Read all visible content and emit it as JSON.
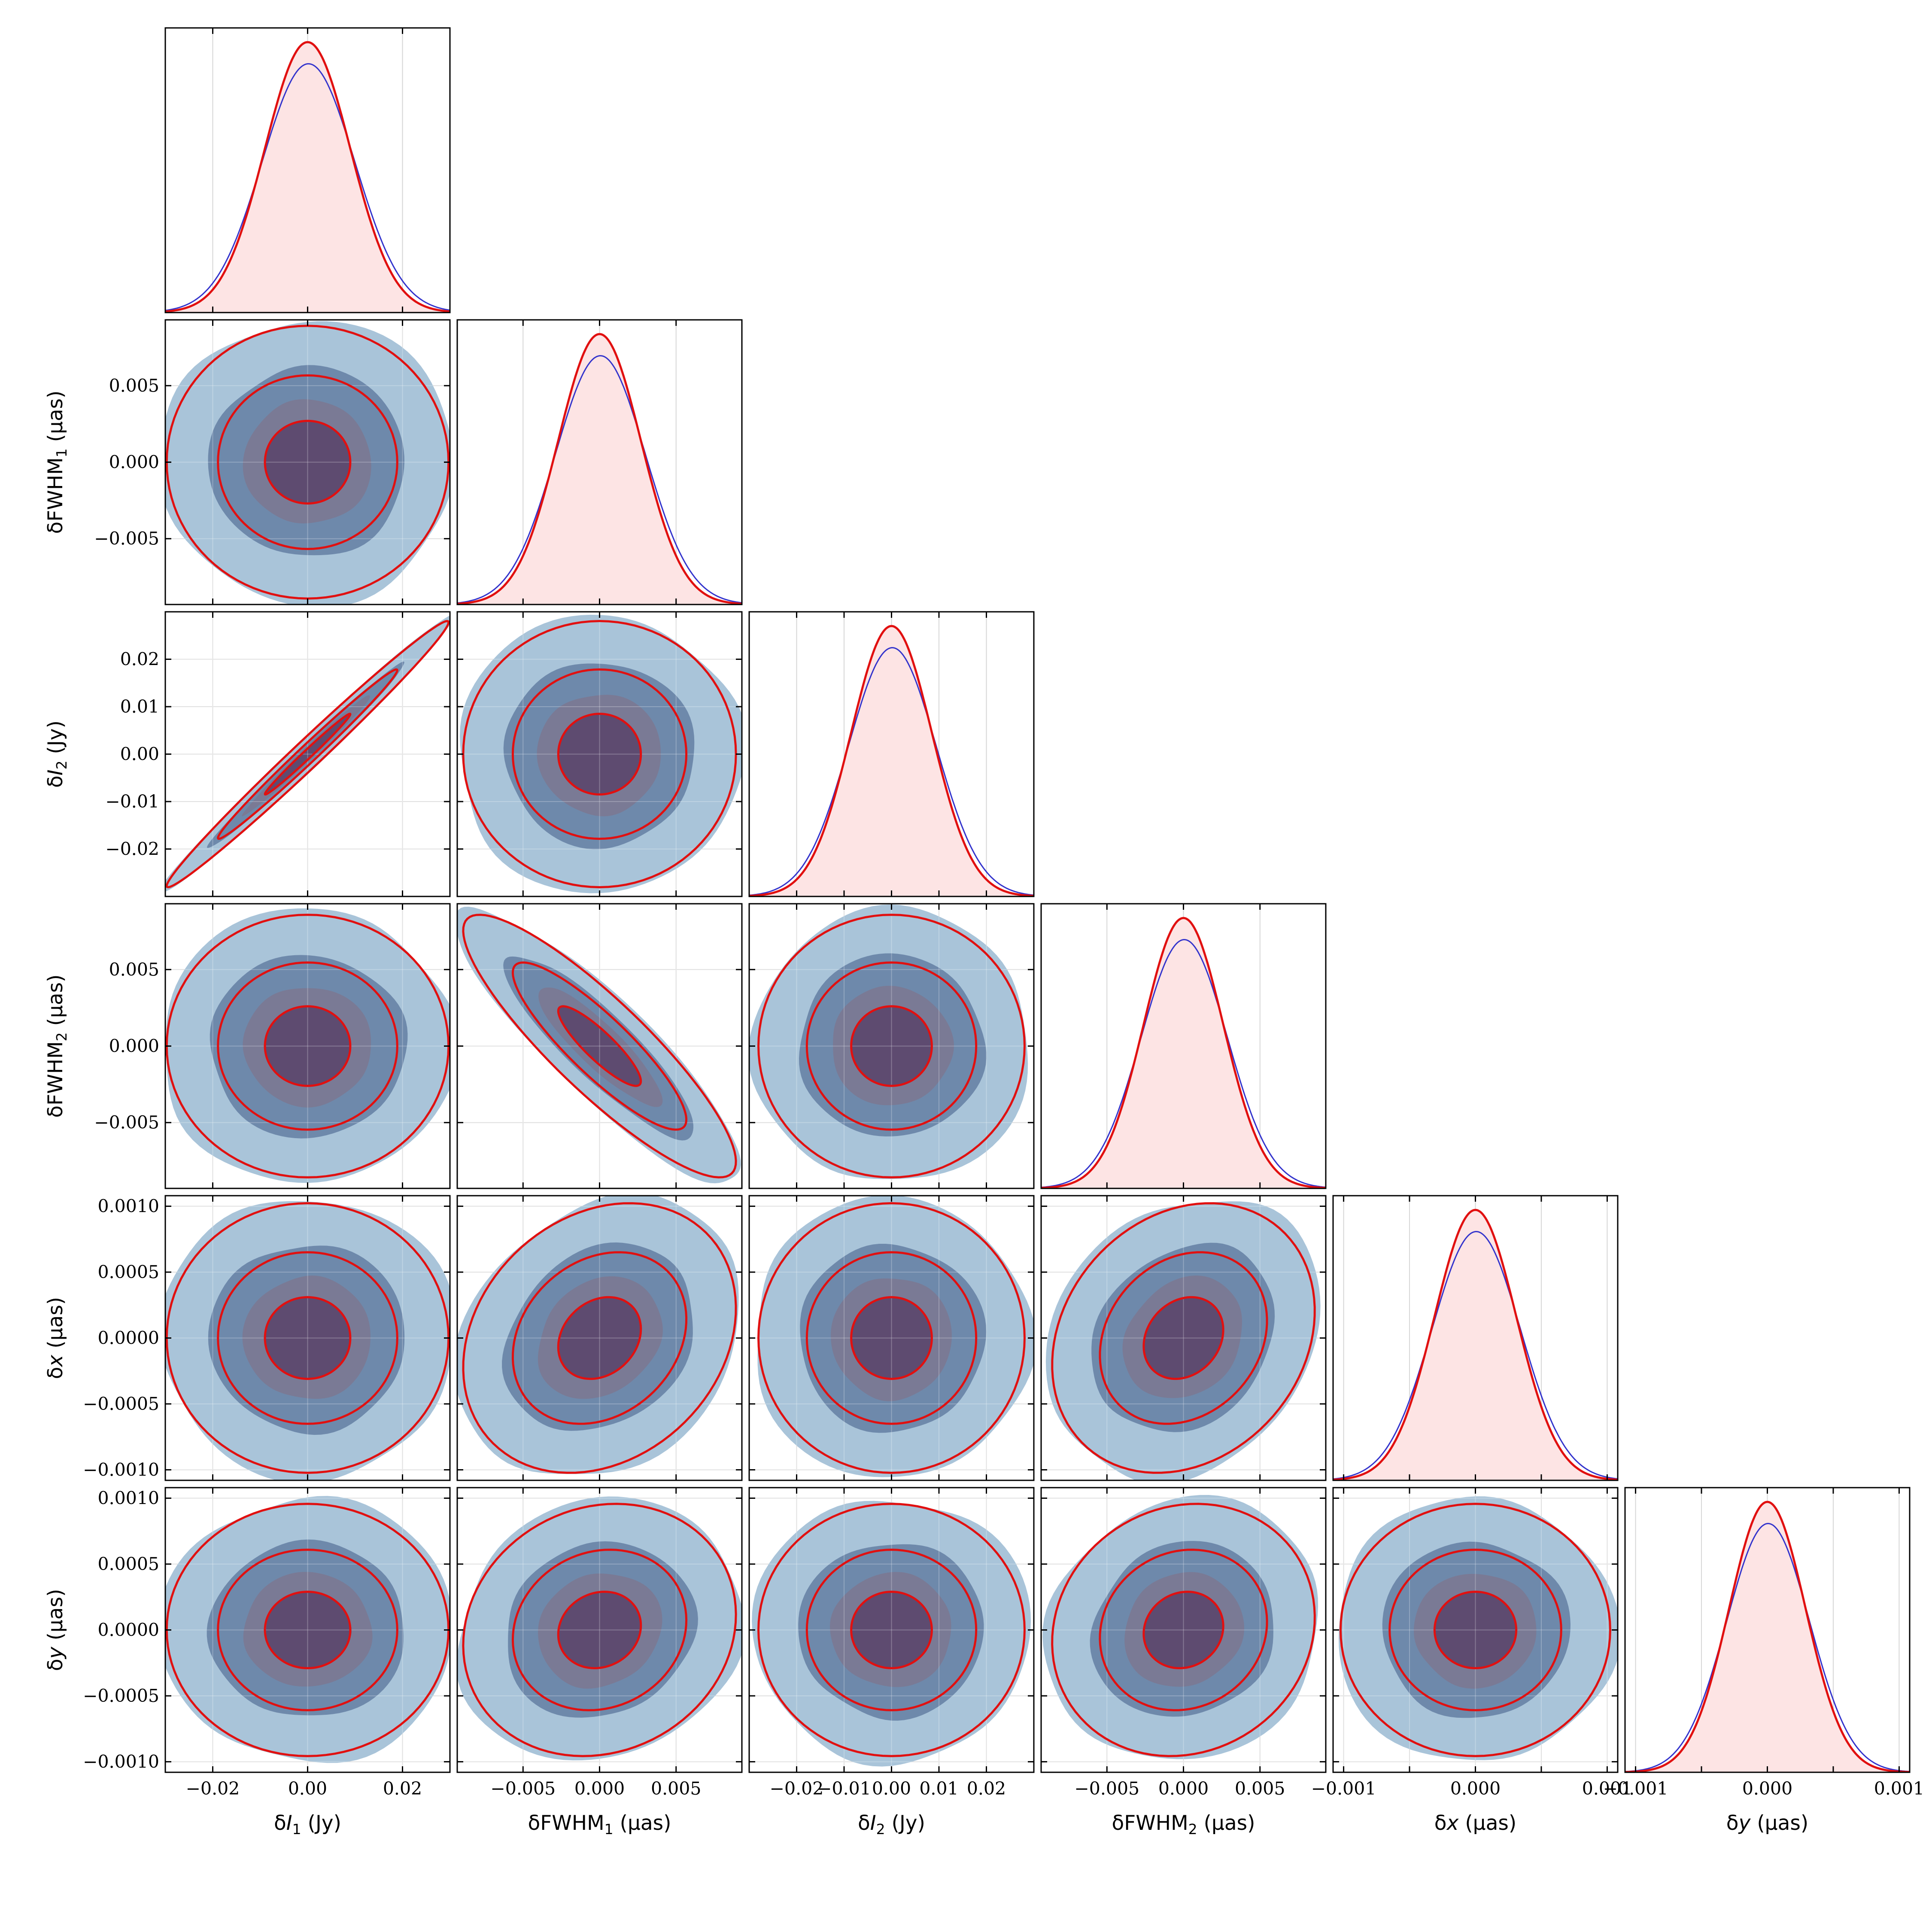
{
  "chart_data": {
    "type": "corner",
    "parameters": [
      {
        "key": "dI1",
        "base": "δI",
        "sub": "1",
        "italic": true,
        "unit": "(Jy)",
        "range": [
          -0.03,
          0.03
        ],
        "sigma": 0.009,
        "ticks": [
          -0.02,
          0.0,
          0.02
        ],
        "tick_labels": [
          "−0.02",
          "0.00",
          "0.02"
        ]
      },
      {
        "key": "dFWHM1",
        "base": "δFWHM",
        "sub": "1",
        "italic": false,
        "unit": "(μas)",
        "range": [
          -0.0093,
          0.0093
        ],
        "sigma": 0.0027,
        "ticks": [
          -0.005,
          0.0,
          0.005
        ],
        "tick_labels": [
          "−0.005",
          "0.000",
          "0.005"
        ]
      },
      {
        "key": "dI2",
        "base": "δI",
        "sub": "2",
        "italic": true,
        "unit": "(Jy)",
        "range": [
          -0.03,
          0.03
        ],
        "sigma": 0.0085,
        "ticks": [
          -0.02,
          -0.01,
          0.0,
          0.01,
          0.02
        ],
        "tick_labels": [
          "−0.02",
          "−0.01",
          "0.00",
          "0.01",
          "0.02"
        ]
      },
      {
        "key": "dFWHM2",
        "base": "δFWHM",
        "sub": "2",
        "italic": false,
        "unit": "(μas)",
        "range": [
          -0.0093,
          0.0093
        ],
        "sigma": 0.0026,
        "ticks": [
          -0.005,
          0.0,
          0.005
        ],
        "tick_labels": [
          "−0.005",
          "0.000",
          "0.005"
        ]
      },
      {
        "key": "dx",
        "base": "δx",
        "sub": "",
        "italic": true,
        "unit": "(μas)",
        "range": [
          -0.00108,
          0.00108
        ],
        "sigma": 0.00031,
        "ticks": [
          -0.001,
          -0.0005,
          0.0,
          0.0005,
          0.001
        ],
        "tick_labels": [
          "−0.0010",
          "−0.0005",
          "0.0000",
          "0.0005",
          "0.0010"
        ],
        "bottom_tick_labels": [
          "−0.001",
          "",
          "0.000",
          "",
          "0.001"
        ]
      },
      {
        "key": "dy",
        "base": "δy",
        "sub": "",
        "italic": true,
        "unit": "(μas)",
        "range": [
          -0.00108,
          0.00108
        ],
        "sigma": 0.00029,
        "ticks": [
          -0.001,
          -0.0005,
          0.0,
          0.0005,
          0.001
        ],
        "tick_labels": [
          "−0.0010",
          "−0.0005",
          "0.0000",
          "0.0005",
          "0.0010"
        ],
        "bottom_tick_labels": [
          "−0.001",
          "",
          "0.000",
          "",
          "0.001"
        ]
      }
    ],
    "correlations": {
      "0-2": 0.99,
      "1-3": -0.88,
      "1-4": 0.22,
      "3-4": 0.2,
      "1-5": 0.12,
      "3-5": 0.1
    },
    "series": [
      {
        "name": "",
        "kind": "kde_samples_filled",
        "fill_colors": [
          "#a9c4d9",
          "#6e89ab",
          "#7a7a95",
          "#5e4b70"
        ],
        "line_color": "#3333cc"
      },
      {
        "name": "",
        "kind": "gaussian_fisher",
        "line_color": "#e11010",
        "fill_color": "#fde4e4"
      }
    ],
    "contour_sigma_levels": [
      1,
      2,
      3
    ],
    "grid": true,
    "legend": "none",
    "title": "",
    "colors": {
      "samples_outer": "#a9c4d9",
      "samples_mid": "#6e89ab",
      "samples_inner": "#5e4b70",
      "gaussian": "#e11010",
      "kde_line": "#3333cc",
      "diag_fill": "#fde4e4"
    }
  }
}
